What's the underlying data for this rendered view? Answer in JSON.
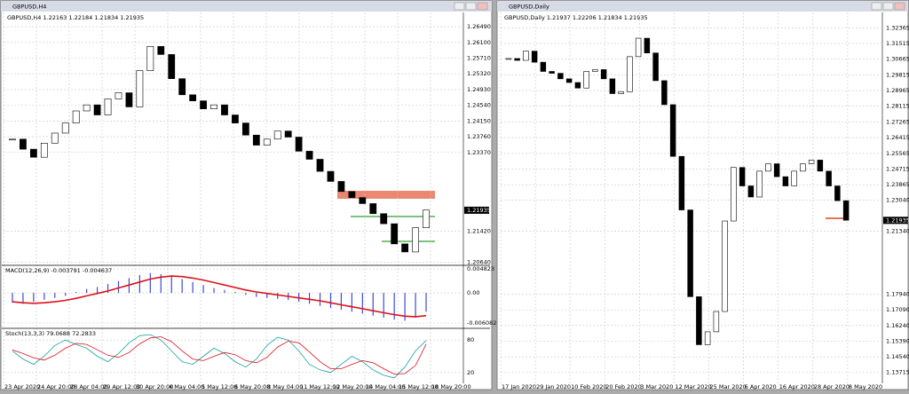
{
  "windows": [
    {
      "title": "GBPUSD,H4",
      "header": "GBPUSD,H4  1.22163 1.22184 1.21834 1.21935",
      "x_labels": [
        "23 Apr 2020",
        "24 Apr 20:00",
        "28 Apr 04:00",
        "29 Apr 12:00",
        "30 Apr 20:00",
        "4 May 04:00",
        "5 May 12:00",
        "6 May 20:00",
        "8 May 04:00",
        "11 May 12:00",
        "12 May 20:00",
        "14 May 04:00",
        "15 May 12:00",
        "18 May 20:00"
      ],
      "panes": [
        {
          "kind": "price",
          "ylim": [
            1.2059,
            1.268
          ],
          "current": 1.21935,
          "yticks": [
            {
              "value": 1.2649,
              "label": "1.26490"
            },
            {
              "value": 1.261,
              "label": "1.26100"
            },
            {
              "value": 1.2571,
              "label": "1.25710"
            },
            {
              "value": 1.2532,
              "label": "1.25320"
            },
            {
              "value": 1.2493,
              "label": "1.24930"
            },
            {
              "value": 1.2454,
              "label": "1.24540"
            },
            {
              "value": 1.2415,
              "label": "1.24150"
            },
            {
              "value": 1.2376,
              "label": "1.23760"
            },
            {
              "value": 1.2337,
              "label": "1.23370"
            },
            {
              "value": 1.2142,
              "label": "1.21420"
            },
            {
              "value": 1.2064,
              "label": "1.20640"
            }
          ],
          "values": [
            1.237,
            1.2345,
            1.2325,
            1.236,
            1.2385,
            1.241,
            1.244,
            1.2455,
            1.243,
            1.247,
            1.2485,
            1.245,
            1.254,
            1.26,
            1.258,
            1.252,
            1.248,
            1.2465,
            1.2445,
            1.2455,
            1.243,
            1.241,
            1.238,
            1.2355,
            1.237,
            1.239,
            1.2375,
            1.234,
            1.232,
            1.229,
            1.2265,
            1.224,
            1.2225,
            1.221,
            1.2185,
            1.216,
            1.211,
            1.209,
            1.215,
            1.2194
          ]
        },
        {
          "kind": "macd",
          "label": "MACD(12,26,9) -0.003791 -0.004637",
          "ylim": [
            -0.0068,
            0.0054
          ],
          "yticks": [
            0.004823,
            {
              "value": 0,
              "label": "0.00"
            },
            -0.006082
          ],
          "values": [
            -0.002,
            -0.0022,
            -0.0018,
            -0.0014,
            -0.001,
            -0.0006,
            0.0002,
            0.0008,
            0.0012,
            0.0018,
            0.0024,
            0.003,
            0.0036,
            0.004,
            0.0038,
            0.0034,
            0.0028,
            0.0022,
            0.0016,
            0.001,
            0.0006,
            0.0002,
            -0.0004,
            -0.0008,
            -0.001,
            -0.0012,
            -0.0014,
            -0.0018,
            -0.0022,
            -0.0026,
            -0.003,
            -0.0034,
            -0.0038,
            -0.0042,
            -0.0046,
            -0.005,
            -0.0054,
            -0.0056,
            -0.005,
            -0.0038
          ],
          "signal": [
            -0.0018,
            -0.002,
            -0.0021,
            -0.002,
            -0.0018,
            -0.0015,
            -0.0011,
            -0.0006,
            -0.0001,
            0.0004,
            0.001,
            0.0016,
            0.0022,
            0.0028,
            0.0032,
            0.0034,
            0.0033,
            0.003,
            0.0026,
            0.0021,
            0.0016,
            0.0011,
            0.0006,
            0.0002,
            -0.0001,
            -0.0004,
            -0.0007,
            -0.001,
            -0.0013,
            -0.0016,
            -0.002,
            -0.0024,
            -0.0028,
            -0.0032,
            -0.0036,
            -0.004,
            -0.0044,
            -0.0047,
            -0.0048,
            -0.0046
          ]
        },
        {
          "kind": "stoch",
          "label": "Stoch(13,3,3) 79.0688 72.2833",
          "ylim": [
            0,
            100
          ],
          "yticks": [
            80,
            20
          ],
          "values": [
            60,
            45,
            35,
            50,
            70,
            80,
            72,
            65,
            50,
            40,
            55,
            75,
            88,
            90,
            80,
            60,
            40,
            35,
            50,
            65,
            55,
            40,
            30,
            45,
            70,
            85,
            80,
            60,
            35,
            25,
            20,
            35,
            50,
            40,
            25,
            15,
            10,
            30,
            60,
            79.07
          ],
          "signal": [
            62,
            55,
            47,
            43,
            52,
            65,
            74,
            72,
            62,
            52,
            48,
            57,
            73,
            84,
            86,
            77,
            60,
            45,
            42,
            50,
            57,
            53,
            42,
            38,
            48,
            67,
            78,
            75,
            58,
            40,
            27,
            27,
            35,
            42,
            38,
            27,
            17,
            18,
            33,
            72.28
          ]
        }
      ]
    },
    {
      "title": "GBPUSD,Daily",
      "header": "GBPUSD,Daily  1.21937 1.22206 1.21834 1.21935",
      "x_labels": [
        "17 Jan 2020",
        "29 Jan 2020",
        "10 Feb 2020",
        "20 Feb 2020",
        "3 Mar 2020",
        "12 Mar 2020",
        "25 Mar 2020",
        "6 Apr 2020",
        "16 Apr 2020",
        "28 Apr 2020",
        "8 May 2020"
      ],
      "panes": [
        {
          "kind": "price",
          "ylim": [
            1.133,
            1.331
          ],
          "current": 1.21935,
          "yticks": [
            1.32365,
            1.31515,
            1.30665,
            1.29815,
            1.28965,
            1.28115,
            1.27265,
            1.26415,
            1.25565,
            1.24715,
            1.23865,
            {
              "value": 1.2304,
              "label": "1.23040"
            },
            {
              "value": 1.2134,
              "label": "1.21340"
            },
            {
              "value": 1.1794,
              "label": "1.17940"
            },
            {
              "value": 1.1709,
              "label": "1.17090"
            },
            {
              "value": 1.1624,
              "label": "1.16240"
            },
            {
              "value": 1.1539,
              "label": "1.15390"
            },
            {
              "value": 1.1454,
              "label": "1.14540"
            },
            1.13715
          ],
          "values": [
            1.307,
            1.306,
            1.311,
            1.305,
            1.3,
            1.299,
            1.296,
            1.294,
            1.291,
            1.3,
            1.301,
            1.296,
            1.288,
            1.289,
            1.308,
            1.318,
            1.31,
            1.295,
            1.282,
            1.254,
            1.225,
            1.178,
            1.152,
            1.159,
            1.17,
            1.219,
            1.248,
            1.238,
            1.232,
            1.246,
            1.25,
            1.243,
            1.238,
            1.246,
            1.25,
            1.252,
            1.246,
            1.238,
            1.23,
            1.2194
          ]
        }
      ]
    }
  ]
}
